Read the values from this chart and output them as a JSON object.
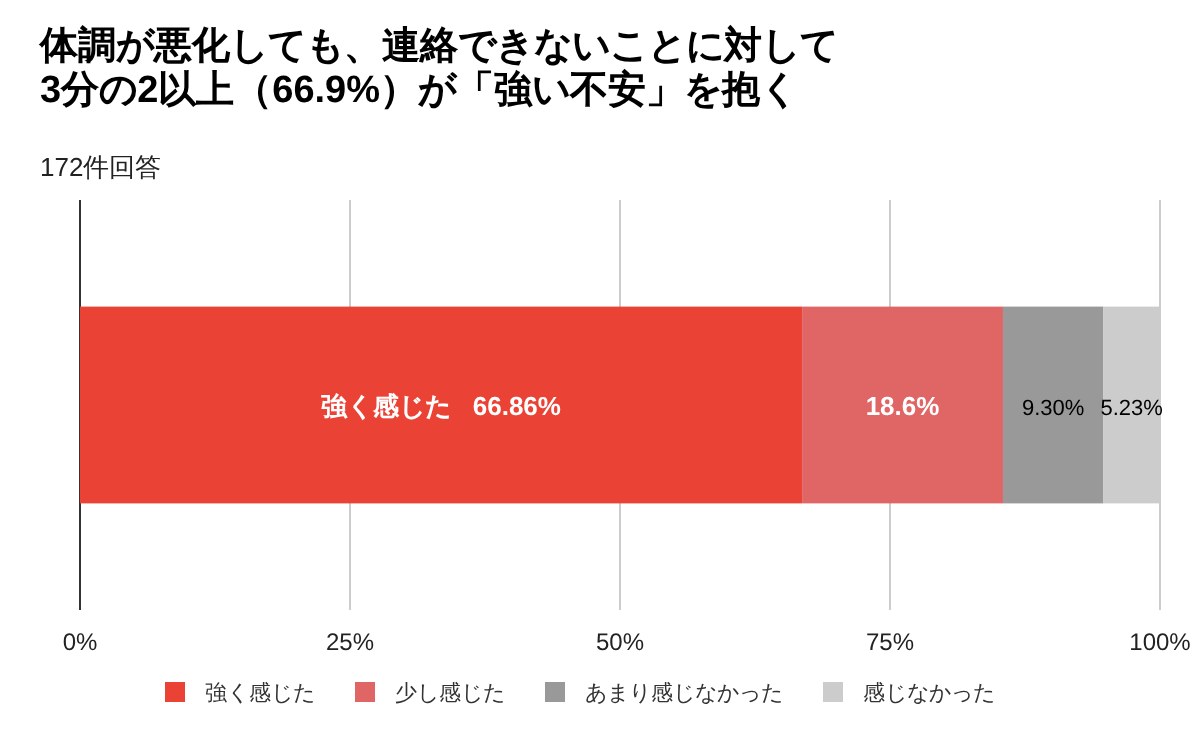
{
  "chart_data": {
    "type": "bar",
    "orientation": "horizontal",
    "stacked": true,
    "title": "体調が悪化しても、連絡できないことに対して\n3分の2以上（66.9%）が「強い不安」を抱く",
    "subtitle": "172件回答",
    "categories": [
      null
    ],
    "series": [
      {
        "name": "強く感じた",
        "color": "#ea4335",
        "values": [
          66.86
        ],
        "value_labels": [
          "強く感じた   66.86%"
        ]
      },
      {
        "name": "少し感じた",
        "color": "#e06666",
        "values": [
          18.6
        ],
        "value_labels": [
          "18.6%"
        ]
      },
      {
        "name": "あまり感じなかった",
        "color": "#999999",
        "values": [
          9.3
        ],
        "value_labels": [
          "9.30%"
        ]
      },
      {
        "name": "感じなかった",
        "color": "#cccccc",
        "values": [
          5.23
        ],
        "value_labels": [
          "5.23%"
        ]
      }
    ],
    "xlim": [
      0,
      100
    ],
    "xticks": [
      {
        "value": 0,
        "label": "0%"
      },
      {
        "value": 25,
        "label": "25%"
      },
      {
        "value": 50,
        "label": "50%"
      },
      {
        "value": 75,
        "label": "75%"
      },
      {
        "value": 100,
        "label": "100%"
      }
    ],
    "grid": "x",
    "legend": "bottom"
  }
}
